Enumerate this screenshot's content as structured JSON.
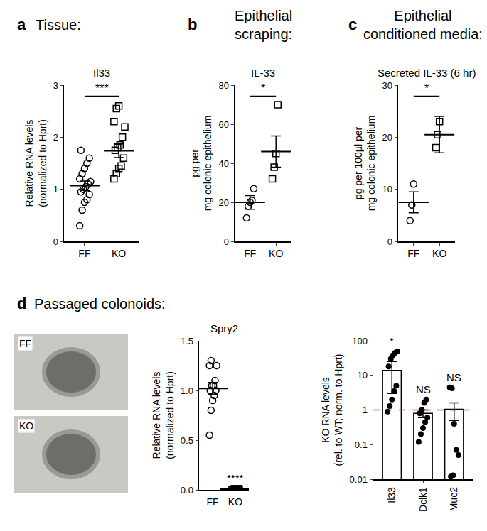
{
  "chart_data": [
    {
      "type": "scatter",
      "panel": "a",
      "title": "Tissue:",
      "subtitle": "Il33",
      "ylabel": [
        "Relative RNA levels",
        "(normalized to Hprt)"
      ],
      "categories": [
        "FF",
        "KO"
      ],
      "groups": [
        {
          "values": [
            0.3,
            0.6,
            0.75,
            0.8,
            0.9,
            0.95,
            1.0,
            1.05,
            1.1,
            1.15,
            1.2,
            1.3,
            1.4,
            1.5,
            1.6,
            1.75
          ],
          "mean": 1.07,
          "error": 0.09,
          "marker": "circle-open"
        },
        {
          "values": [
            1.2,
            1.3,
            1.4,
            1.45,
            1.6,
            1.75,
            1.8,
            1.85,
            2.0,
            2.2,
            2.3,
            2.55,
            2.6
          ],
          "mean": 1.74,
          "error": 0.13,
          "marker": "square-open"
        }
      ],
      "ylim": [
        0,
        3
      ],
      "yticks": [
        0,
        1,
        2,
        3
      ],
      "grid": false,
      "color": "#000000",
      "significance": [
        {
          "text": "***",
          "categories": [
            "FF",
            "KO"
          ]
        }
      ]
    },
    {
      "type": "scatter",
      "panel": "b",
      "title": [
        "Epithelial",
        "scraping:"
      ],
      "subtitle": "IL-33",
      "ylabel": [
        "pg per",
        "mg colonic epithelium"
      ],
      "categories": [
        "FF",
        "KO"
      ],
      "groups": [
        {
          "values": [
            12,
            18,
            20,
            21,
            27
          ],
          "mean": 20,
          "error": 3.5,
          "marker": "circle-open"
        },
        {
          "values": [
            32,
            38,
            45,
            70
          ],
          "mean": 46,
          "error": 8,
          "marker": "square-open"
        }
      ],
      "ylim": [
        0,
        80
      ],
      "yticks": [
        0,
        20,
        40,
        60,
        80
      ],
      "grid": false,
      "color": "#000000",
      "significance": [
        {
          "text": "*",
          "categories": [
            "FF",
            "KO"
          ]
        }
      ]
    },
    {
      "type": "scatter",
      "panel": "c",
      "title": [
        "Epithelial",
        "conditioned media:"
      ],
      "subtitle": "Secreted IL-33 (6 hr)",
      "ylabel": [
        "pg per 100µl per",
        "mg colonic epithelium"
      ],
      "categories": [
        "FF",
        "KO"
      ],
      "groups": [
        {
          "values": [
            4,
            7,
            11
          ],
          "mean": 7.5,
          "error": 2,
          "marker": "circle-open"
        },
        {
          "values": [
            18,
            20.5,
            23
          ],
          "mean": 20.5,
          "error": 3.5,
          "marker": "square-open"
        }
      ],
      "ylim": [
        0,
        30
      ],
      "yticks": [
        0,
        10,
        20,
        30
      ],
      "grid": false,
      "color": "#000000",
      "significance": [
        {
          "text": "*",
          "categories": [
            "FF",
            "KO"
          ]
        }
      ]
    },
    {
      "type": "image",
      "panel": "d",
      "title": "Passaged colonoids:",
      "labels": [
        "FF",
        "KO"
      ]
    },
    {
      "type": "scatter",
      "subtitle": "Spry2",
      "ylabel": [
        "Relative RNA levels",
        "(normalized to Hprt)"
      ],
      "categories": [
        "FF",
        "KO"
      ],
      "groups": [
        {
          "values": [
            0.55,
            0.8,
            0.9,
            0.95,
            1.0,
            1.0,
            1.05,
            1.05,
            1.1,
            1.25,
            1.25,
            1.3
          ],
          "mean": 1.02,
          "error": 0.06,
          "marker": "circle-open"
        },
        {
          "values": [
            0.005,
            0.01,
            0.0,
            0.008,
            0.012,
            0.003,
            0.006,
            0.01,
            0.004,
            0.007
          ],
          "mean": 0.0065,
          "error": 0.001,
          "marker": "square-open"
        }
      ],
      "ylim": [
        0,
        1.5
      ],
      "yticks": [
        {
          "value": 0,
          "label": "0.0"
        },
        {
          "value": 0.5,
          "label": "0.5"
        },
        {
          "value": 1,
          "label": "1.0"
        },
        {
          "value": 1.5,
          "label": "1.5"
        }
      ],
      "grid": false,
      "color": "#000000",
      "significance": [
        {
          "text": "****",
          "categories": [
            "KO"
          ]
        }
      ]
    },
    {
      "type": "bar",
      "ylabel": [
        "KO RNA levels",
        "(rel. to WT; norm. to Hprt)"
      ],
      "categories": [
        "Il33",
        "Dclk1",
        "Muc2"
      ],
      "values": [
        14,
        0.8,
        1.05
      ],
      "error": [
        11,
        0.2,
        0.55
      ],
      "points": [
        [
          0.9,
          1.3,
          2,
          3.5,
          5,
          18,
          30,
          38,
          45,
          50
        ],
        [
          0.12,
          0.2,
          0.3,
          0.45,
          0.6,
          0.8,
          1.0,
          1.6,
          2.0
        ],
        [
          4.5,
          4.2,
          0.4,
          0.07,
          0.05,
          0.012,
          0.013
        ]
      ],
      "marker": "circle",
      "color": "#000000",
      "log": "y",
      "ylim": [
        0.01,
        100
      ],
      "yticks": [
        0.01,
        0.1,
        1,
        10,
        100
      ],
      "grid": false,
      "reference_line": {
        "value": 1,
        "color": "#d62728",
        "line_style": "dash"
      },
      "significance": [
        {
          "text": "*",
          "categories": [
            "Il33"
          ]
        },
        {
          "text": "NS",
          "categories": [
            "Dclk1"
          ]
        },
        {
          "text": "NS",
          "categories": [
            "Muc2"
          ]
        }
      ]
    }
  ]
}
